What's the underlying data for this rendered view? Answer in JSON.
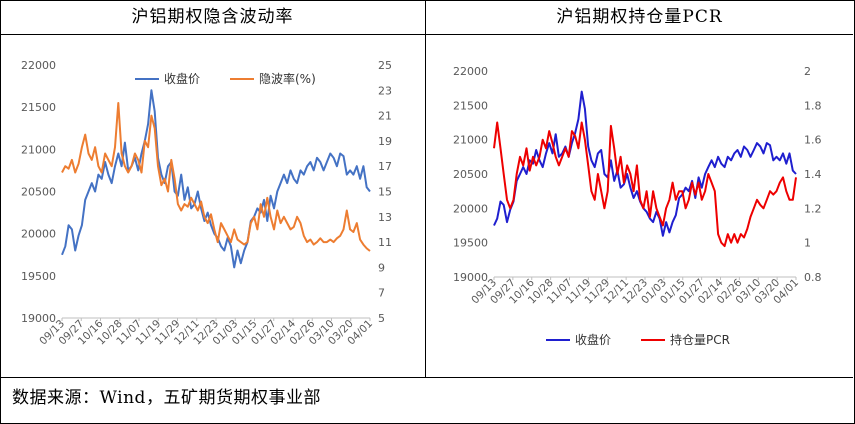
{
  "left_panel": {
    "title": "沪铝期权隐含波动率"
  },
  "right_panel": {
    "title": "沪铝期权持仓量PCR"
  },
  "footer": {
    "source": "数据来源：Wind，五矿期货期权事业部"
  },
  "colors": {
    "left_price": "#4472c4",
    "left_iv": "#ed7d31",
    "right_price": "#1f1fcf",
    "right_pcr": "#ee0000",
    "axis_text": "#595959",
    "grid": "#d9d9d9"
  },
  "chart_data": [
    {
      "type": "line",
      "title": "沪铝期权隐含波动率",
      "x_tick_labels": [
        "09/13",
        "09/27",
        "10/16",
        "10/28",
        "11/07",
        "11/19",
        "11/29",
        "12/11",
        "12/23",
        "01/03",
        "01/15",
        "01/27",
        "02/14",
        "02/26",
        "03/10",
        "03/20",
        "04/01"
      ],
      "y_left": {
        "min": 19000,
        "max": 22000,
        "ticks": [
          19000,
          19500,
          20000,
          20500,
          21000,
          21500,
          22000
        ]
      },
      "y_right": {
        "min": 5,
        "max": 25,
        "ticks": [
          5,
          7,
          9,
          11,
          13,
          15,
          17,
          19,
          21,
          23,
          25
        ]
      },
      "legend_position": "top",
      "grid": false,
      "series": [
        {
          "name": "收盘价",
          "axis": "left",
          "color": "#4472c4",
          "values": [
            19750,
            19850,
            20100,
            20050,
            19800,
            19980,
            20100,
            20400,
            20500,
            20600,
            20500,
            20700,
            20650,
            20850,
            20700,
            20600,
            20800,
            20950,
            20800,
            21080,
            20750,
            20800,
            20900,
            20750,
            20950,
            21100,
            21300,
            21700,
            21450,
            20900,
            20700,
            20600,
            20800,
            20850,
            20500,
            20450,
            20700,
            20400,
            20550,
            20300,
            20350,
            20500,
            20300,
            20150,
            20250,
            20100,
            20000,
            19950,
            19850,
            19800,
            19950,
            19850,
            19600,
            19800,
            19650,
            19800,
            19900,
            20150,
            20200,
            20300,
            20250,
            20400,
            20150,
            20450,
            20300,
            20500,
            20600,
            20700,
            20600,
            20750,
            20650,
            20600,
            20750,
            20700,
            20800,
            20850,
            20750,
            20900,
            20850,
            20750,
            20850,
            20950,
            20900,
            20800,
            20950,
            20920,
            20700,
            20750,
            20700,
            20800,
            20650,
            20800,
            20550,
            20500
          ]
        },
        {
          "name": "隐波率(%)",
          "axis": "right",
          "color": "#ed7d31",
          "values": [
            16.5,
            17,
            16.8,
            17.5,
            16.5,
            17.2,
            18.5,
            19.5,
            18,
            17.5,
            18.5,
            17,
            16.5,
            18,
            17.5,
            17,
            18.5,
            22,
            18,
            17,
            16.5,
            17,
            18,
            17.5,
            16.5,
            19,
            18.5,
            21,
            20,
            17,
            15.5,
            16,
            15,
            17.5,
            16,
            14,
            13.5,
            14,
            13.8,
            14.5,
            14,
            13.5,
            14.2,
            13,
            12.5,
            13.2,
            12,
            11,
            12.5,
            12,
            11.5,
            11,
            12,
            11.2,
            11,
            10.8,
            11,
            12.5,
            13,
            12,
            14,
            13,
            14.5,
            13,
            12,
            13.5,
            12.5,
            13,
            12.5,
            12,
            12.2,
            13,
            12.5,
            11.5,
            11,
            11.2,
            10.8,
            11,
            11.3,
            11,
            11,
            11.2,
            11,
            11.3,
            11.5,
            12,
            13.5,
            12,
            11.8,
            12.5,
            11.2,
            10.8,
            10.5,
            10.3
          ]
        }
      ]
    },
    {
      "type": "line",
      "title": "沪铝期权持仓量PCR",
      "x_tick_labels": [
        "09/13",
        "09/27",
        "10/16",
        "10/28",
        "11/07",
        "11/19",
        "11/29",
        "12/11",
        "12/23",
        "01/03",
        "01/15",
        "01/27",
        "02/14",
        "02/26",
        "03/10",
        "03/20",
        "04/01"
      ],
      "y_left": {
        "min": 19000,
        "max": 22000,
        "ticks": [
          19000,
          19500,
          20000,
          20500,
          21000,
          21500,
          22000
        ]
      },
      "y_right": {
        "min": 0.8,
        "max": 2.0,
        "ticks": [
          0.8,
          1.0,
          1.2,
          1.4,
          1.6,
          1.8,
          2.0
        ]
      },
      "legend_position": "bottom",
      "grid": false,
      "series": [
        {
          "name": "收盘价",
          "axis": "left",
          "color": "#1f1fcf",
          "values": [
            19750,
            19850,
            20100,
            20050,
            19800,
            19980,
            20100,
            20400,
            20500,
            20600,
            20500,
            20700,
            20650,
            20850,
            20700,
            20600,
            20800,
            20950,
            20800,
            21080,
            20750,
            20800,
            20900,
            20750,
            20950,
            21100,
            21300,
            21700,
            21450,
            20900,
            20700,
            20600,
            20800,
            20850,
            20500,
            20450,
            20700,
            20400,
            20550,
            20300,
            20350,
            20500,
            20300,
            20150,
            20250,
            20100,
            20000,
            19950,
            19850,
            19800,
            19950,
            19850,
            19600,
            19800,
            19650,
            19800,
            19900,
            20150,
            20200,
            20300,
            20250,
            20400,
            20150,
            20450,
            20300,
            20500,
            20600,
            20700,
            20600,
            20750,
            20650,
            20600,
            20750,
            20700,
            20800,
            20850,
            20750,
            20900,
            20850,
            20750,
            20850,
            20950,
            20900,
            20800,
            20950,
            20920,
            20700,
            20750,
            20700,
            20800,
            20650,
            20800,
            20550,
            20500
          ]
        },
        {
          "name": "持仓量PCR",
          "axis": "right",
          "color": "#ee0000",
          "values": [
            1.55,
            1.7,
            1.55,
            1.4,
            1.25,
            1.2,
            1.25,
            1.4,
            1.5,
            1.45,
            1.55,
            1.42,
            1.5,
            1.45,
            1.5,
            1.6,
            1.55,
            1.65,
            1.58,
            1.5,
            1.45,
            1.5,
            1.55,
            1.5,
            1.65,
            1.62,
            1.55,
            1.7,
            1.6,
            1.45,
            1.3,
            1.25,
            1.4,
            1.3,
            1.2,
            1.3,
            1.68,
            1.55,
            1.4,
            1.5,
            1.35,
            1.45,
            1.4,
            1.3,
            1.45,
            1.25,
            1.2,
            1.3,
            1.15,
            1.3,
            1.2,
            1.15,
            1.1,
            1.2,
            1.25,
            1.35,
            1.25,
            1.3,
            1.3,
            1.2,
            1.25,
            1.35,
            1.28,
            1.35,
            1.25,
            1.3,
            1.4,
            1.35,
            1.3,
            1.05,
            1.0,
            0.98,
            1.05,
            1.0,
            1.05,
            1.0,
            1.05,
            1.03,
            1.08,
            1.15,
            1.2,
            1.25,
            1.22,
            1.2,
            1.25,
            1.3,
            1.28,
            1.3,
            1.35,
            1.38,
            1.3,
            1.25,
            1.25,
            1.38
          ]
        }
      ]
    }
  ]
}
